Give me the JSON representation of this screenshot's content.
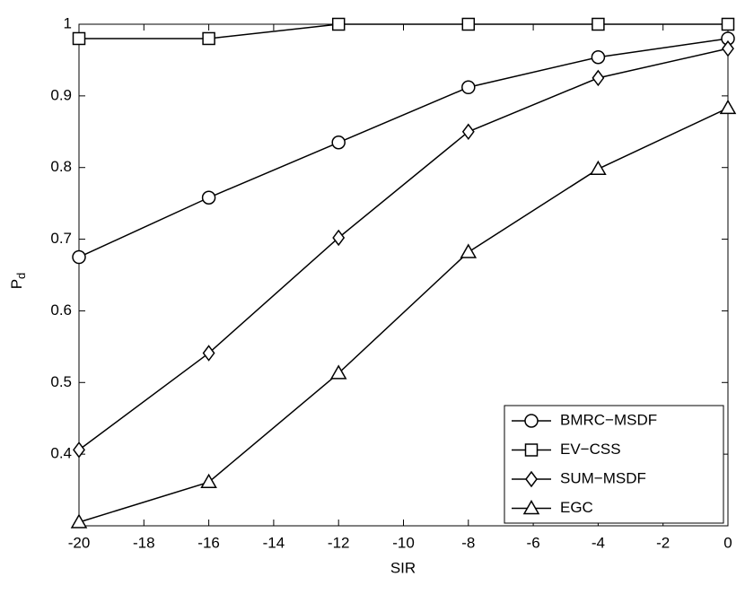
{
  "chart_data": {
    "type": "line",
    "x_label": "SIR",
    "y_label": {
      "main": "P",
      "sub": "d"
    },
    "x": [
      -20,
      -16,
      -12,
      -8,
      -4,
      0
    ],
    "series": [
      {
        "name": "BMRC−MSDF",
        "color": "#000000",
        "marker": "circle",
        "values": [
          0.675,
          0.758,
          0.835,
          0.912,
          0.954,
          0.98
        ]
      },
      {
        "name": "EV−CSS",
        "color": "#000000",
        "marker": "square",
        "values": [
          0.98,
          0.98,
          1,
          1,
          1,
          1
        ]
      },
      {
        "name": "SUM−MSDF",
        "color": "#000000",
        "marker": "diamond",
        "values": [
          0.406,
          0.541,
          0.702,
          0.85,
          0.925,
          0.966
        ]
      },
      {
        "name": "EGC",
        "color": "#000000",
        "marker": "triangle",
        "values": [
          0.305,
          0.361,
          0.513,
          0.682,
          0.798,
          0.883
        ]
      }
    ],
    "xlim": [
      -20,
      0
    ],
    "xticks": [
      -20,
      -18,
      -16,
      -14,
      -12,
      -10,
      -8,
      -6,
      -4,
      -2,
      0
    ],
    "ylim": [
      0.3,
      1
    ],
    "yticks": [
      0.4,
      0.5,
      0.6,
      0.7,
      0.8,
      0.9,
      1
    ],
    "grid": false,
    "legend": "lower right"
  }
}
